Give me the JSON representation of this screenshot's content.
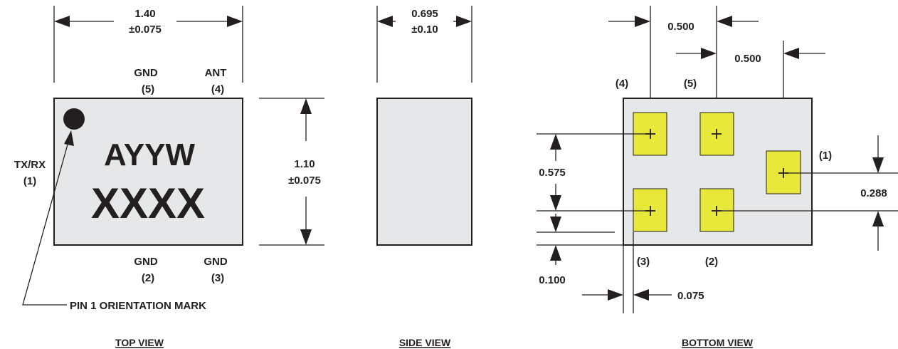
{
  "top_view": {
    "title": "TOP VIEW",
    "width_dim": "1.40",
    "width_tol": "±0.075",
    "height_dim": "1.10",
    "height_tol": "±0.075",
    "marking_line1": "AYYW",
    "marking_line2": "XXXX",
    "pins": {
      "gnd5_name": "GND",
      "gnd5_num": "(5)",
      "ant_name": "ANT",
      "ant_num": "(4)",
      "gnd2_name": "GND",
      "gnd2_num": "(2)",
      "gnd3_name": "GND",
      "gnd3_num": "(3)",
      "txrx_name": "TX/RX",
      "txrx_num": "(1)"
    },
    "orientation_label": "PIN 1 ORIENTATION MARK"
  },
  "side_view": {
    "title": "SIDE VIEW",
    "thickness_dim": "0.695",
    "thickness_tol": "±0.10"
  },
  "bottom_view": {
    "title": "BOTTOM VIEW",
    "pitch_top": "0.500",
    "pitch_right": "0.500",
    "pitch_vertical": "0.575",
    "pin1_offset": "0.288",
    "edge_vertical": "0.100",
    "edge_horizontal": "0.075",
    "pad_labels": {
      "p4": "(4)",
      "p5": "(5)",
      "p1": "(1)",
      "p3": "(3)",
      "p2": "(2)"
    }
  },
  "colors": {
    "body": "#e6e7e8",
    "pad": "#e8e83a",
    "ink": "#231f20"
  }
}
